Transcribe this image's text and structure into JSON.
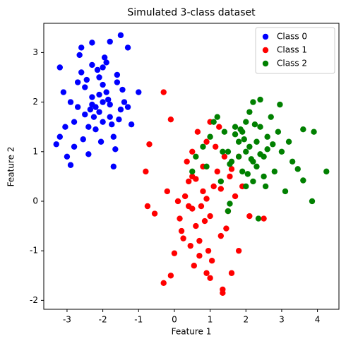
{
  "chart_data": {
    "type": "scatter",
    "title": "Simulated 3-class dataset",
    "x_label": "Feature 1",
    "y_label": "Feature 2",
    "xlim": [
      -3.65,
      4.6
    ],
    "ylim": [
      -2.18,
      3.59
    ],
    "xticks": [
      -3,
      -2,
      -1,
      0,
      1,
      2,
      3,
      4
    ],
    "yticks": [
      -2,
      -1,
      0,
      1,
      2,
      3
    ],
    "legend": "upper right",
    "series": [
      {
        "name": "Class 0",
        "color": "#0000ff",
        "x": [
          -3.3,
          -3.2,
          -3.0,
          -2.9,
          -3.2,
          -1.5,
          -1.8,
          -2.6,
          -2.3,
          -1.3,
          -1.0,
          -1.2,
          -1.7,
          -2.4,
          -3.1,
          -2.8,
          -2.0,
          -2.1,
          -1.9,
          -2.2,
          -2.5,
          -1.8,
          -2.3,
          -1.6,
          -2.0,
          -2.7,
          -1.4,
          -2.1,
          -2.4,
          -1.9,
          -2.6,
          -1.7,
          -2.2,
          -2.0,
          -1.5,
          -2.8,
          -2.3,
          -1.8,
          -2.5,
          -2.1,
          -1.6,
          -1.95,
          -2.35,
          -2.9,
          -1.3,
          -2.05,
          -2.45,
          -1.75,
          -2.15,
          -3.05,
          -2.65,
          -1.45,
          -2.25,
          -1.85,
          -2.55,
          -2.0,
          -1.65,
          -2.7,
          -1.55,
          -2.3
        ],
        "values": [
          1.15,
          1.3,
          0.9,
          0.73,
          2.7,
          3.35,
          3.22,
          3.1,
          3.2,
          3.1,
          2.2,
          1.55,
          0.7,
          0.95,
          2.2,
          1.1,
          2.0,
          1.8,
          2.2,
          1.9,
          2.3,
          1.7,
          2.1,
          2.4,
          1.6,
          1.9,
          2.0,
          2.5,
          1.5,
          2.8,
          2.6,
          1.3,
          1.45,
          2.35,
          1.85,
          1.6,
          2.75,
          1.95,
          1.75,
          2.15,
          2.55,
          2.9,
          1.85,
          2.0,
          1.9,
          1.2,
          2.45,
          1.55,
          2.65,
          1.5,
          2.95,
          2.25,
          1.7,
          2.05,
          1.25,
          2.7,
          1.05,
          2.4,
          1.65,
          1.95
        ]
      },
      {
        "name": "Class 1",
        "color": "#ff0000",
        "x": [
          -0.3,
          -0.1,
          -0.7,
          -0.8,
          -0.75,
          -0.55,
          -0.3,
          -0.1,
          0.0,
          1.35,
          1.35,
          1.0,
          1.6,
          0.9,
          0.4,
          2.5,
          2.1,
          1.8,
          0.5,
          0.8,
          1.0,
          1.2,
          0.6,
          0.3,
          0.9,
          1.4,
          0.7,
          1.1,
          0.2,
          0.5,
          1.5,
          0.8,
          1.3,
          0.4,
          0.95,
          1.7,
          0.65,
          0.1,
          1.05,
          0.45,
          1.25,
          0.85,
          0.35,
          1.55,
          0.75,
          0.15,
          1.15,
          0.55,
          1.9,
          -0.2,
          0.6,
          1.45,
          0.25,
          1.0,
          0.9,
          1.6,
          0.5,
          1.3,
          0.7,
          1.8
        ],
        "values": [
          2.2,
          1.65,
          1.15,
          0.6,
          -0.1,
          -0.25,
          -1.65,
          -1.5,
          -1.05,
          -1.85,
          -1.78,
          -1.55,
          -1.45,
          -1.45,
          -0.1,
          -0.35,
          -0.3,
          -1.0,
          0.5,
          0.2,
          -0.3,
          0.6,
          -0.5,
          0.1,
          1.2,
          0.9,
          -0.8,
          0.3,
          -0.6,
          1.0,
          -0.2,
          0.7,
          -0.7,
          0.4,
          -1.0,
          0.1,
          1.4,
          0.0,
          -1.2,
          -0.9,
          1.5,
          -0.4,
          0.8,
          0.5,
          -0.1,
          -0.35,
          1.1,
          -1.3,
          0.3,
          0.2,
          0.45,
          -0.55,
          -0.75,
          1.6,
          0.05,
          0.65,
          -0.15,
          0.25,
          -1.1,
          0.9
        ]
      },
      {
        "name": "Class 2",
        "color": "#008000",
        "x": [
          4.25,
          3.85,
          3.6,
          3.9,
          3.6,
          2.95,
          2.4,
          2.2,
          1.55,
          1.5,
          2.35,
          0.6,
          0.5,
          2.0,
          2.2,
          1.8,
          2.5,
          1.9,
          2.1,
          2.3,
          1.7,
          2.6,
          2.0,
          1.5,
          2.8,
          2.4,
          1.2,
          3.0,
          2.2,
          1.6,
          2.7,
          1.9,
          1.0,
          3.2,
          2.1,
          1.4,
          2.5,
          1.8,
          0.9,
          2.9,
          2.3,
          1.3,
          3.3,
          2.0,
          1.1,
          2.6,
          1.7,
          3.1,
          2.4,
          0.8,
          2.15,
          1.95,
          2.75,
          1.55,
          3.45,
          2.05,
          1.35,
          2.55,
          1.85,
          2.25
        ],
        "values": [
          0.6,
          0.0,
          0.42,
          1.4,
          1.45,
          1.95,
          2.05,
          2.0,
          -0.05,
          -0.2,
          -0.35,
          0.9,
          0.6,
          1.0,
          0.8,
          1.2,
          0.9,
          1.4,
          1.1,
          0.7,
          1.5,
          1.3,
          1.6,
          1.0,
          0.6,
          1.5,
          1.7,
          1.0,
          0.4,
          0.8,
          1.7,
          0.6,
          1.3,
          1.2,
          1.8,
          1.4,
          0.5,
          0.9,
          0.7,
          1.4,
          1.2,
          0.4,
          0.8,
          0.3,
          1.6,
          1.05,
          1.35,
          0.2,
          0.95,
          1.1,
          0.85,
          1.25,
          1.15,
          0.75,
          0.65,
          0.55,
          1.0,
          0.3,
          1.45,
          1.55
        ]
      }
    ]
  }
}
